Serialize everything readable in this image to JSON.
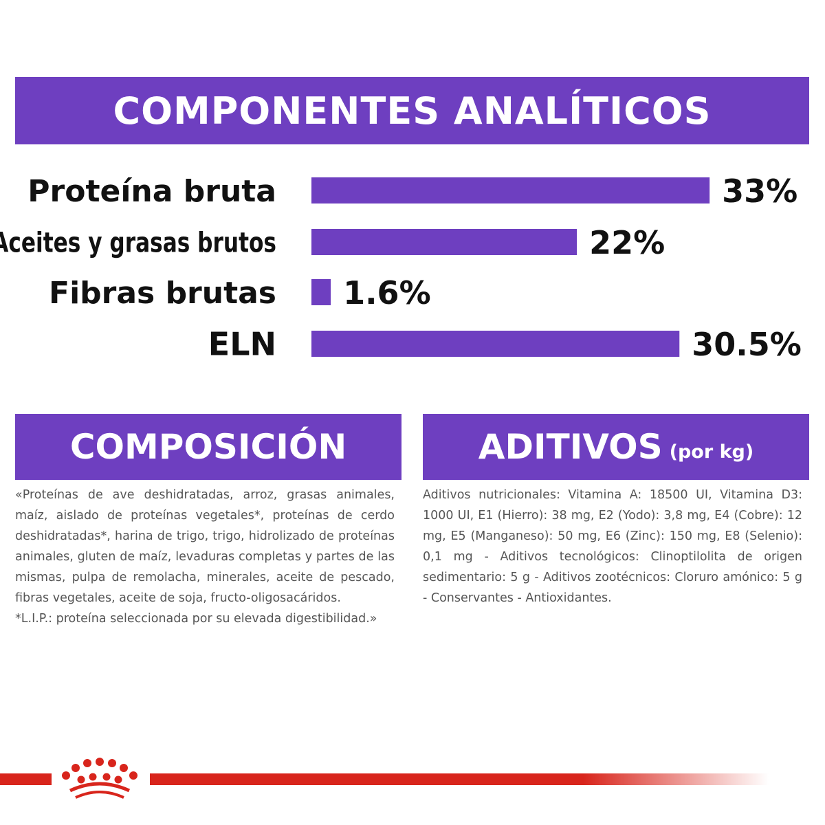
{
  "colors": {
    "purple": "#6e3fc0",
    "red": "#d8251c"
  },
  "headings": {
    "analiticos": "COMPONENTES ANALÍTICOS",
    "composicion": "COMPOSICIÓN",
    "aditivos": "ADITIVOS",
    "aditivos_sub": "(por kg)"
  },
  "chart_data": {
    "type": "bar",
    "orientation": "horizontal",
    "categories": [
      "Proteína bruta",
      "Aceites y grasas brutos",
      "Fibras brutas",
      "ELN"
    ],
    "values": [
      33,
      22,
      1.6,
      30.5
    ],
    "value_labels": [
      "33%",
      "22%",
      "1.6%",
      "30.5%"
    ],
    "unit": "%",
    "title": "COMPONENTES ANALÍTICOS",
    "grid": false
  },
  "composicion": {
    "paragraphs": [
      "«Proteínas de ave deshidratadas, arroz, grasas animales, maíz, aislado de proteínas vegetales*, proteínas de cerdo deshidratadas*, harina de trigo, trigo, hidrolizado de proteínas animales, gluten de maíz, levaduras completas y partes de las mismas, pulpa de remolacha, minerales, aceite de pescado, fibras vegetales, aceite de soja, fructo-oligosacáridos.",
      "*L.I.P.: proteína seleccionada por su elevada digestibilidad.»"
    ]
  },
  "aditivos": {
    "text": "Aditivos nutricionales: Vitamina A: 18500 UI, Vitamina D3: 1000 UI, E1 (Hierro): 38 mg, E2 (Yodo): 3,8 mg, E4 (Cobre): 12 mg, E5 (Manganeso): 50 mg, E6 (Zinc): 150 mg, E8 (Selenio): 0,1 mg - Aditivos tecnológicos: Clinoptilolita de origen sedimentario: 5 g - Aditivos zootécnicos: Cloruro amónico: 5 g - Conservantes - Antioxidantes."
  },
  "footer": {
    "logo_icon": "crown-icon"
  }
}
